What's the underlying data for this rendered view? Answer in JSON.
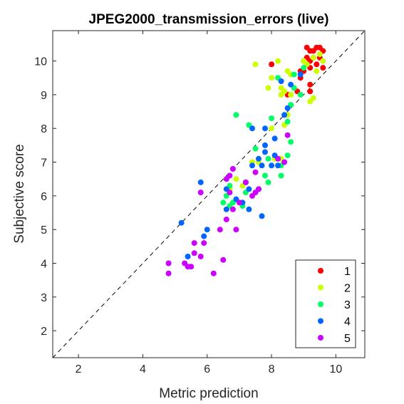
{
  "chart_data": {
    "type": "scatter",
    "title": "JPEG2000_transmission_errors (live)",
    "xlabel": "Metric prediction",
    "ylabel": "Subjective score",
    "xlim": [
      1.2,
      10.9
    ],
    "ylim": [
      1.2,
      10.9
    ],
    "xticks": [
      2,
      4,
      6,
      8,
      10
    ],
    "yticks": [
      2,
      3,
      4,
      5,
      6,
      7,
      8,
      9,
      10
    ],
    "grid": false,
    "reference_line": {
      "style": "dashed",
      "x": [
        1.2,
        10.9
      ],
      "y": [
        1.2,
        10.9
      ]
    },
    "legend": {
      "placement": "bottom-right"
    },
    "series": [
      {
        "name": "1",
        "color": "#ff0000",
        "points": [
          [
            9.1,
            10.4
          ],
          [
            9.4,
            10.4
          ],
          [
            9.5,
            10.4
          ],
          [
            9.6,
            10.3
          ],
          [
            9.3,
            10.3
          ],
          [
            9.2,
            10.3
          ],
          [
            9.0,
            10.0
          ],
          [
            9.1,
            10.1
          ],
          [
            9.2,
            10.0
          ],
          [
            9.3,
            10.1
          ],
          [
            9.5,
            10.1
          ],
          [
            9.4,
            9.9
          ],
          [
            9.2,
            9.8
          ],
          [
            9.6,
            9.8
          ],
          [
            9.0,
            9.7
          ],
          [
            8.9,
            9.7
          ],
          [
            8.9,
            9.5
          ],
          [
            9.2,
            9.3
          ],
          [
            8.8,
            9.1
          ],
          [
            8.5,
            9.0
          ],
          [
            9.2,
            9.1
          ],
          [
            8.0,
            9.9
          ]
        ]
      },
      {
        "name": "2",
        "color": "#ccff00",
        "points": [
          [
            9.5,
            10.2
          ],
          [
            9.3,
            10.1
          ],
          [
            9.6,
            10.0
          ],
          [
            9.0,
            10.0
          ],
          [
            8.2,
            10.0
          ],
          [
            9.1,
            9.9
          ],
          [
            9.4,
            9.7
          ],
          [
            7.5,
            9.9
          ],
          [
            8.5,
            9.7
          ],
          [
            8.6,
            9.6
          ],
          [
            8.0,
            9.5
          ],
          [
            7.9,
            9.2
          ],
          [
            8.3,
            9.2
          ],
          [
            8.4,
            9.1
          ],
          [
            8.3,
            9.0
          ],
          [
            8.6,
            9.0
          ],
          [
            9.2,
            8.8
          ],
          [
            9.3,
            8.9
          ],
          [
            8.5,
            8.4
          ],
          [
            8.4,
            8.1
          ],
          [
            8.0,
            8.0
          ],
          [
            8.1,
            7.1
          ],
          [
            8.3,
            7.1
          ],
          [
            7.6,
            7.0
          ],
          [
            7.5,
            6.7
          ],
          [
            7.4,
            7.0
          ],
          [
            6.9,
            6.5
          ],
          [
            7.1,
            6.3
          ],
          [
            6.7,
            6.2
          ]
        ]
      },
      {
        "name": "3",
        "color": "#00ff66",
        "points": [
          [
            9.0,
            9.8
          ],
          [
            8.7,
            9.6
          ],
          [
            8.2,
            9.5
          ],
          [
            8.7,
            9.2
          ],
          [
            8.9,
            9.0
          ],
          [
            8.6,
            8.7
          ],
          [
            8.0,
            8.3
          ],
          [
            7.3,
            8.1
          ],
          [
            6.9,
            8.4
          ],
          [
            8.5,
            8.2
          ],
          [
            8.6,
            7.6
          ],
          [
            8.5,
            7.2
          ],
          [
            8.2,
            7.1
          ],
          [
            8.3,
            6.9
          ],
          [
            7.5,
            7.4
          ],
          [
            7.9,
            7.1
          ],
          [
            7.8,
            6.6
          ],
          [
            8.3,
            6.6
          ],
          [
            7.9,
            6.4
          ],
          [
            6.7,
            6.3
          ],
          [
            6.6,
            6.0
          ],
          [
            7.2,
            6.1
          ],
          [
            6.5,
            5.8
          ],
          [
            6.7,
            5.7
          ],
          [
            6.8,
            5.8
          ],
          [
            7.1,
            5.7
          ]
        ]
      },
      {
        "name": "4",
        "color": "#0066ff",
        "points": [
          [
            8.3,
            9.4
          ],
          [
            8.9,
            9.6
          ],
          [
            8.6,
            9.3
          ],
          [
            8.4,
            8.4
          ],
          [
            8.5,
            8.6
          ],
          [
            7.4,
            8.0
          ],
          [
            7.8,
            8.0
          ],
          [
            8.1,
            7.7
          ],
          [
            7.8,
            7.5
          ],
          [
            7.8,
            7.3
          ],
          [
            8.1,
            7.2
          ],
          [
            7.6,
            7.1
          ],
          [
            7.4,
            6.9
          ],
          [
            7.7,
            6.9
          ],
          [
            8.0,
            6.9
          ],
          [
            8.2,
            6.9
          ],
          [
            7.2,
            6.4
          ],
          [
            7.3,
            6.2
          ],
          [
            7.6,
            6.2
          ],
          [
            5.8,
            6.4
          ],
          [
            6.6,
            6.2
          ],
          [
            6.9,
            5.9
          ],
          [
            6.6,
            5.6
          ],
          [
            7.1,
            5.8
          ],
          [
            7.3,
            5.6
          ],
          [
            7.7,
            5.4
          ],
          [
            6.0,
            5.0
          ],
          [
            5.9,
            4.8
          ],
          [
            5.2,
            5.2
          ],
          [
            5.4,
            4.2
          ]
        ]
      },
      {
        "name": "5",
        "color": "#cc00ff",
        "points": [
          [
            8.5,
            7.8
          ],
          [
            8.2,
            7.1
          ],
          [
            8.4,
            7.0
          ],
          [
            7.5,
            6.7
          ],
          [
            6.8,
            6.8
          ],
          [
            6.7,
            6.6
          ],
          [
            7.2,
            6.4
          ],
          [
            6.6,
            6.5
          ],
          [
            5.8,
            6.1
          ],
          [
            6.7,
            6.1
          ],
          [
            7.4,
            6.0
          ],
          [
            7.6,
            6.2
          ],
          [
            7.5,
            6.1
          ],
          [
            7.0,
            5.8
          ],
          [
            6.8,
            5.6
          ],
          [
            6.4,
            5.0
          ],
          [
            6.6,
            5.3
          ],
          [
            6.9,
            5.0
          ],
          [
            5.6,
            4.6
          ],
          [
            5.9,
            4.6
          ],
          [
            5.6,
            4.3
          ],
          [
            5.8,
            4.2
          ],
          [
            5.3,
            4.0
          ],
          [
            5.4,
            3.9
          ],
          [
            5.5,
            3.9
          ],
          [
            6.5,
            4.1
          ],
          [
            4.8,
            4.0
          ],
          [
            4.8,
            3.7
          ],
          [
            6.2,
            3.7
          ]
        ]
      }
    ]
  }
}
